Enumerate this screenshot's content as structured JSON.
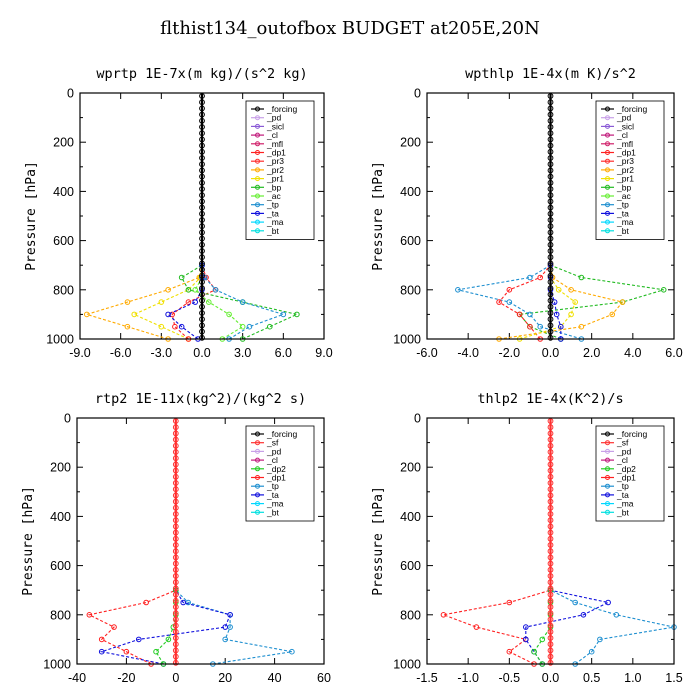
{
  "title": "flthist134_outofbox  BUDGET at205E,20N",
  "colors": {
    "_forcing": "#000000",
    "_pd": "#c8a0e8",
    "_sicl": "#8a5ad6",
    "_sf": "#ff3030",
    "_cl": "#c0187a",
    "_mfl": "#d0206a",
    "_dp1": "#ff2020",
    "_dp2": "#22cc22",
    "_pr3": "#ff3030",
    "_pr2": "#ffaa00",
    "_pr1": "#f0e000",
    "_bp": "#22bb22",
    "_ac": "#66ee33",
    "_tp": "#1e8fd0",
    "_ta": "#1010dd",
    "_ma": "#00d8ff",
    "_bt": "#00e0e0"
  },
  "chart_data": [
    {
      "type": "line",
      "title": "wprtp   1E-7x(m kg)/(s^2 kg)",
      "ylabel": "Pressure [hPa]",
      "xlim": [
        -9,
        9
      ],
      "xticks": [
        "-9.0",
        "-6.0",
        "-3.0",
        "0.0",
        "3.0",
        "6.0",
        "9.0"
      ],
      "ylim": [
        0,
        1000
      ],
      "yticks": [
        "0",
        "200",
        "400",
        "600",
        "800",
        "1000"
      ],
      "legend_position": "top-right",
      "legend": [
        "_forcing",
        "_pd",
        "_sicl",
        "_cl",
        "_mfl",
        "_dp1",
        "_pr3",
        "_pr2",
        "_pr1",
        "_bp",
        "_ac",
        "_tp",
        "_ta",
        "_ma",
        "_bt"
      ],
      "pressure": [
        1000,
        950,
        900,
        850,
        800,
        750,
        700
      ],
      "series": [
        {
          "name": "_pr2",
          "values": [
            -2.5,
            -5.5,
            -8.5,
            -5.5,
            -2.5,
            -0.2,
            0.0
          ]
        },
        {
          "name": "_pr1",
          "values": [
            -1.0,
            -3.0,
            -5.0,
            -3.0,
            -1.0,
            -0.1,
            0.0
          ]
        },
        {
          "name": "_dp1",
          "values": [
            -1.0,
            -2.0,
            -2.2,
            -1.0,
            1.0,
            0.3,
            0.0
          ]
        },
        {
          "name": "_bp",
          "values": [
            3.0,
            5.0,
            7.0,
            3.0,
            -1.0,
            -1.5,
            0.0
          ]
        },
        {
          "name": "_ac",
          "values": [
            1.5,
            3.0,
            2.0,
            0.5,
            -0.5,
            0.0,
            0.0
          ]
        },
        {
          "name": "_tp",
          "values": [
            2.0,
            3.5,
            6.0,
            3.0,
            1.0,
            0.2,
            0.0
          ]
        },
        {
          "name": "_ta",
          "values": [
            -0.3,
            -1.5,
            -2.5,
            -0.5,
            0.0,
            0.0,
            0.0
          ]
        }
      ]
    },
    {
      "type": "line",
      "title": "wpthlp   1E-4x(m K)/s^2",
      "ylabel": "Pressure [hPa]",
      "xlim": [
        -6,
        6
      ],
      "xticks": [
        "-6.0",
        "-4.0",
        "-2.0",
        "0.0",
        "2.0",
        "4.0",
        "6.0"
      ],
      "ylim": [
        0,
        1000
      ],
      "yticks": [
        "0",
        "200",
        "400",
        "600",
        "800",
        "1000"
      ],
      "legend_position": "top-right",
      "legend": [
        "_forcing",
        "_pd",
        "_sicl",
        "_cl",
        "_mfl",
        "_dp1",
        "_pr3",
        "_pr2",
        "_pr1",
        "_bp",
        "_ac",
        "_tp",
        "_ta",
        "_ma",
        "_bt"
      ],
      "pressure": [
        1000,
        950,
        900,
        850,
        800,
        750,
        700
      ],
      "series": [
        {
          "name": "_bp",
          "values": [
            0.5,
            -1.0,
            -1.5,
            3.5,
            5.5,
            1.5,
            0.0
          ]
        },
        {
          "name": "_tp",
          "values": [
            1.5,
            -0.5,
            -1.0,
            -2.0,
            -4.5,
            -1.0,
            0.0
          ]
        },
        {
          "name": "_dp1",
          "values": [
            -0.5,
            -1.0,
            -1.5,
            -2.5,
            -2.0,
            -0.5,
            0.0
          ]
        },
        {
          "name": "_pr2",
          "values": [
            -2.5,
            1.5,
            3.0,
            3.5,
            1.0,
            0.1,
            0.0
          ]
        },
        {
          "name": "_pr1",
          "values": [
            -1.5,
            0.5,
            1.0,
            1.2,
            0.4,
            0.0,
            0.0
          ]
        },
        {
          "name": "_ta",
          "values": [
            0.5,
            0.5,
            0.3,
            0.2,
            0.0,
            0.0,
            0.0
          ]
        }
      ]
    },
    {
      "type": "line",
      "title": "rtp2   1E-11x(kg^2)/(kg^2 s)",
      "ylabel": "Pressure [hPa]",
      "xlim": [
        -40,
        60
      ],
      "xticks": [
        "-40",
        "-20",
        "0",
        "20",
        "40",
        "60"
      ],
      "ylim": [
        0,
        1000
      ],
      "yticks": [
        "0",
        "200",
        "400",
        "600",
        "800",
        "1000"
      ],
      "legend_position": "top-right",
      "legend": [
        "_forcing",
        "_sf",
        "_pd",
        "_cl",
        "_dp2",
        "_dp1",
        "_tp",
        "_ta",
        "_ma",
        "_bt"
      ],
      "pressure": [
        1000,
        950,
        900,
        850,
        800,
        750,
        700
      ],
      "series": [
        {
          "name": "_dp1",
          "values": [
            -10.0,
            -20.0,
            -30.0,
            -25.0,
            -35.0,
            -12.0,
            0.0
          ]
        },
        {
          "name": "_tp",
          "values": [
            15.0,
            47.0,
            20.0,
            22.0,
            22.0,
            5.0,
            0.0
          ]
        },
        {
          "name": "_ta",
          "values": [
            -5.0,
            -30.0,
            -15.0,
            20.0,
            22.0,
            3.0,
            0.0
          ]
        },
        {
          "name": "_dp2",
          "values": [
            -5.0,
            -8.0,
            -3.0,
            -1.0,
            0.0,
            0.0,
            0.0
          ]
        }
      ]
    },
    {
      "type": "line",
      "title": "thlp2   1E-4x(K^2)/s",
      "ylabel": "Pressure [hPa]",
      "xlim": [
        -1.5,
        1.5
      ],
      "xticks": [
        "-1.5",
        "-1.0",
        "-0.5",
        "0.0",
        "0.5",
        "1.0",
        "1.5"
      ],
      "ylim": [
        0,
        1000
      ],
      "yticks": [
        "0",
        "200",
        "400",
        "600",
        "800",
        "1000"
      ],
      "legend_position": "top-right",
      "legend": [
        "_forcing",
        "_sf",
        "_pd",
        "_cl",
        "_dp2",
        "_dp1",
        "_tp",
        "_ta",
        "_ma",
        "_bt"
      ],
      "pressure": [
        1000,
        950,
        900,
        850,
        800,
        750,
        700
      ],
      "series": [
        {
          "name": "_dp1",
          "values": [
            -0.2,
            -0.5,
            -0.3,
            -0.9,
            -1.3,
            -0.5,
            0.0
          ]
        },
        {
          "name": "_tp",
          "values": [
            0.3,
            0.5,
            0.6,
            1.5,
            0.8,
            0.3,
            0.0
          ]
        },
        {
          "name": "_ta",
          "values": [
            -0.1,
            -0.2,
            -0.3,
            -0.3,
            0.4,
            0.7,
            0.0
          ]
        },
        {
          "name": "_dp2",
          "values": [
            -0.1,
            -0.2,
            -0.1,
            0.0,
            0.0,
            0.0,
            0.0
          ]
        }
      ]
    }
  ]
}
